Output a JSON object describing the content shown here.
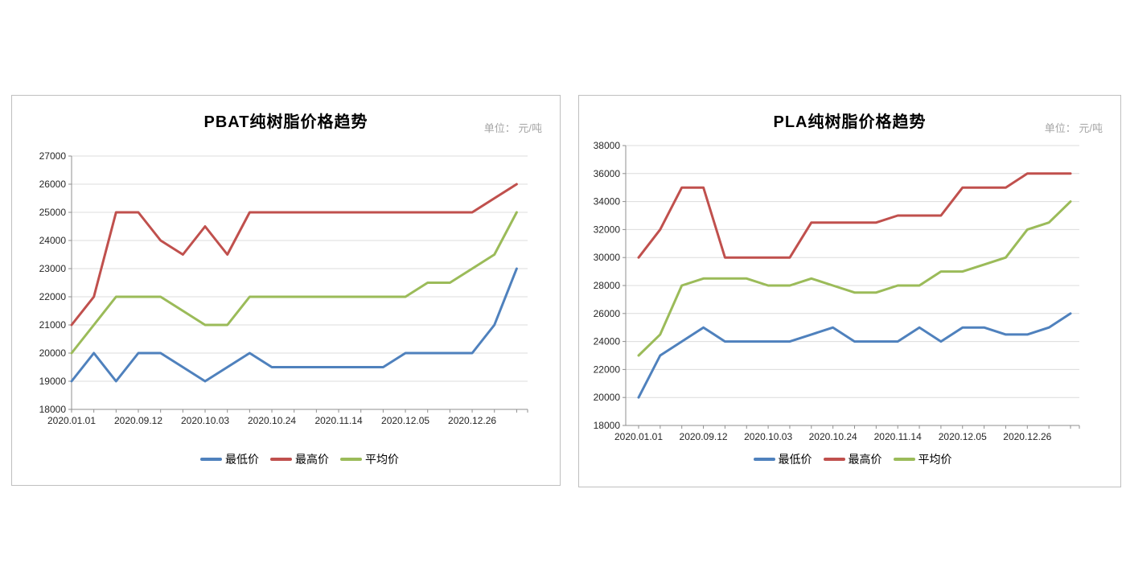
{
  "chart_data": [
    {
      "type": "line",
      "title": "PBAT纯树脂价格趋势",
      "unit_label": "单位： 元/吨",
      "ylim": [
        18000,
        27000
      ],
      "y_step": 1000,
      "grid": true,
      "legend_position": "bottom",
      "n_points": 21,
      "x_tick_labels": [
        "2020.01.01",
        "2020.09.12",
        "2020.10.03",
        "2020.10.24",
        "2020.11.14",
        "2020.12.05",
        "2020.12.26"
      ],
      "x_label_indices": [
        0,
        3,
        6,
        9,
        12,
        15,
        18
      ],
      "series": [
        {
          "name": "最低价",
          "semantic": "min-price",
          "color": "#4F81BD",
          "values": [
            19000,
            20000,
            19000,
            20000,
            20000,
            19500,
            19000,
            19500,
            20000,
            19500,
            19500,
            19500,
            19500,
            19500,
            19500,
            20000,
            20000,
            20000,
            20000,
            21000,
            23000
          ]
        },
        {
          "name": "最高价",
          "semantic": "max-price",
          "color": "#C0504D",
          "values": [
            21000,
            22000,
            25000,
            25000,
            24000,
            23500,
            24500,
            23500,
            25000,
            25000,
            25000,
            25000,
            25000,
            25000,
            25000,
            25000,
            25000,
            25000,
            25000,
            25500,
            26000
          ]
        },
        {
          "name": "平均价",
          "semantic": "avg-price",
          "color": "#9BBB59",
          "values": [
            20000,
            21000,
            22000,
            22000,
            22000,
            21500,
            21000,
            21000,
            22000,
            22000,
            22000,
            22000,
            22000,
            22000,
            22000,
            22000,
            22500,
            22500,
            23000,
            23500,
            25000
          ]
        }
      ]
    },
    {
      "type": "line",
      "title": "PLA纯树脂价格趋势",
      "unit_label": "单位： 元/吨",
      "ylim": [
        18000,
        38000
      ],
      "y_step": 2000,
      "grid": true,
      "legend_position": "bottom",
      "n_points": 21,
      "x_tick_labels": [
        "2020.01.01",
        "2020.09.12",
        "2020.10.03",
        "2020.10.24",
        "2020.11.14",
        "2020.12.05",
        "2020.12.26"
      ],
      "x_label_indices": [
        0,
        3,
        6,
        9,
        12,
        15,
        18
      ],
      "series": [
        {
          "name": "最低价",
          "semantic": "min-price",
          "color": "#4F81BD",
          "values": [
            20000,
            23000,
            24000,
            25000,
            24000,
            24000,
            24000,
            24000,
            24500,
            25000,
            24000,
            24000,
            24000,
            25000,
            24000,
            25000,
            25000,
            24500,
            24500,
            25000,
            26000
          ]
        },
        {
          "name": "最高价",
          "semantic": "max-price",
          "color": "#C0504D",
          "values": [
            30000,
            32000,
            35000,
            35000,
            30000,
            30000,
            30000,
            30000,
            32500,
            32500,
            32500,
            32500,
            33000,
            33000,
            33000,
            35000,
            35000,
            35000,
            36000,
            36000,
            36000
          ]
        },
        {
          "name": "平均价",
          "semantic": "avg-price",
          "color": "#9BBB59",
          "values": [
            23000,
            24500,
            28000,
            28500,
            28500,
            28500,
            28000,
            28000,
            28500,
            28000,
            27500,
            27500,
            28000,
            28000,
            29000,
            29000,
            29500,
            30000,
            32000,
            32500,
            34000
          ]
        }
      ]
    }
  ]
}
